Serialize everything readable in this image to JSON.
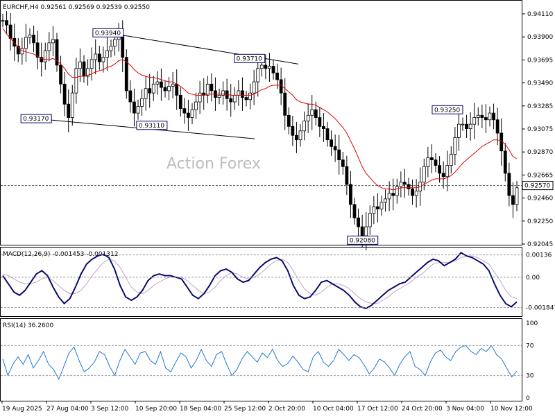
{
  "chart_data": {
    "type": "candlestick",
    "main": {
      "header": "EURCHF,H4  0.92561 0.92569 0.92539 0.92550",
      "watermark": "Action Forex",
      "ylim": [
        0.92045,
        0.9411
      ],
      "price_ticks": [
        "0.94110",
        "0.93900",
        "0.93695",
        "0.93490",
        "0.93285",
        "0.93075",
        "0.92870",
        "0.92665",
        "0.92460",
        "0.92250",
        "0.92045"
      ],
      "current_price": "0.92570",
      "current_value": 0.9257,
      "callouts": [
        {
          "label": "0.93940",
          "t": 0.205,
          "v": 0.9394
        },
        {
          "label": "0.93710",
          "t": 0.48,
          "v": 0.9371
        },
        {
          "label": "0.93170",
          "t": 0.065,
          "v": 0.9317
        },
        {
          "label": "0.93110",
          "t": 0.29,
          "v": 0.9311
        },
        {
          "label": "0.93250",
          "t": 0.865,
          "v": 0.9325
        },
        {
          "label": "0.92080",
          "t": 0.7,
          "v": 0.9208
        }
      ],
      "trendlines": [
        {
          "t1": 0.205,
          "v1": 0.9394,
          "t2": 0.575,
          "v2": 0.9366
        },
        {
          "t1": 0.065,
          "v1": 0.9317,
          "t2": 0.49,
          "v2": 0.9299
        }
      ],
      "close": [
        0.9405,
        0.9401,
        0.9389,
        0.9382,
        0.9375,
        0.938,
        0.939,
        0.9392,
        0.9385,
        0.9372,
        0.9368,
        0.9378,
        0.9385,
        0.9388,
        0.9365,
        0.9348,
        0.933,
        0.9318,
        0.934,
        0.9362,
        0.9368,
        0.9355,
        0.9362,
        0.937,
        0.9375,
        0.9368,
        0.9372,
        0.9378,
        0.9382,
        0.9388,
        0.9392,
        0.9372,
        0.9342,
        0.9332,
        0.9322,
        0.9328,
        0.9335,
        0.9344,
        0.934,
        0.9348,
        0.935,
        0.9345,
        0.9342,
        0.9346,
        0.9348,
        0.9338,
        0.9326,
        0.9322,
        0.9318,
        0.9325,
        0.9332,
        0.934,
        0.9338,
        0.9348,
        0.9342,
        0.9336,
        0.9338,
        0.9342,
        0.9335,
        0.9332,
        0.9338,
        0.9342,
        0.9336,
        0.9334,
        0.934,
        0.935,
        0.9362,
        0.9365,
        0.9362,
        0.9364,
        0.9358,
        0.9352,
        0.934,
        0.932,
        0.931,
        0.9302,
        0.9298,
        0.9306,
        0.9315,
        0.932,
        0.9325,
        0.9318,
        0.931,
        0.9308,
        0.9298,
        0.9292,
        0.9289,
        0.928,
        0.9274,
        0.9258,
        0.924,
        0.9228,
        0.922,
        0.9212,
        0.922,
        0.9232,
        0.9238,
        0.9236,
        0.9242,
        0.9245,
        0.925,
        0.9248,
        0.9256,
        0.926,
        0.9258,
        0.9254,
        0.9248,
        0.9252,
        0.926,
        0.9274,
        0.9282,
        0.928,
        0.9275,
        0.9268,
        0.9265,
        0.9275,
        0.9285,
        0.93,
        0.9312,
        0.9312,
        0.9308,
        0.9312,
        0.9318,
        0.932,
        0.9318,
        0.9316,
        0.9322,
        0.9316,
        0.9304,
        0.9288,
        0.9268,
        0.9248,
        0.924,
        0.9255
      ],
      "ma": [
        0.9398,
        0.9393,
        0.9389,
        0.9385,
        0.9381,
        0.9378,
        0.9377,
        0.9376,
        0.9375,
        0.9373,
        0.9371,
        0.937,
        0.937,
        0.9371,
        0.9369,
        0.9366,
        0.9362,
        0.9357,
        0.9354,
        0.9354,
        0.9355,
        0.9355,
        0.9356,
        0.9357,
        0.9359,
        0.936,
        0.9361,
        0.9363,
        0.9364,
        0.9366,
        0.9369,
        0.937,
        0.9368,
        0.9365,
        0.9361,
        0.9358,
        0.9356,
        0.9355,
        0.9354,
        0.9354,
        0.9353,
        0.9352,
        0.9351,
        0.935,
        0.935,
        0.9348,
        0.9346,
        0.9343,
        0.934,
        0.9339,
        0.9338,
        0.9338,
        0.9338,
        0.9339,
        0.9339,
        0.9339,
        0.9339,
        0.9339,
        0.9339,
        0.9338,
        0.9338,
        0.9338,
        0.9338,
        0.9338,
        0.9338,
        0.9339,
        0.9341,
        0.9343,
        0.9344,
        0.9346,
        0.9347,
        0.9347,
        0.9347,
        0.9344,
        0.9341,
        0.9338,
        0.9334,
        0.9332,
        0.9331,
        0.933,
        0.933,
        0.9329,
        0.9327,
        0.9325,
        0.9323,
        0.932,
        0.9317,
        0.9313,
        0.9309,
        0.9304,
        0.9297,
        0.929,
        0.9282,
        0.9274,
        0.9268,
        0.9264,
        0.926,
        0.9257,
        0.9255,
        0.9254,
        0.9254,
        0.9253,
        0.9254,
        0.9255,
        0.9255,
        0.9255,
        0.9255,
        0.9255,
        0.9256,
        0.9258,
        0.926,
        0.9262,
        0.9263,
        0.9263,
        0.9263,
        0.9264,
        0.9266,
        0.9269,
        0.9273,
        0.9277,
        0.928,
        0.9283,
        0.9286,
        0.9289,
        0.9292,
        0.9294,
        0.9296,
        0.9298,
        0.9298,
        0.9297,
        0.9294,
        0.9289,
        0.9283,
        0.9281
      ]
    },
    "macd": {
      "header": "MACD(12,26,9) -0.001453 -0.001312",
      "ylim": [
        -0.0022,
        0.0016
      ],
      "ticks": [
        {
          "label": "0.00136",
          "v": 0.00136
        },
        {
          "label": "0.00",
          "v": 0
        },
        {
          "label": "-0.001847",
          "v": -0.001847
        }
      ],
      "macd": [
        0.0001,
        -0.0004,
        -0.0009,
        -0.0011,
        -0.0008,
        -0.0003,
        0.0002,
        0.0004,
        0.0001,
        -0.0006,
        -0.0012,
        -0.0016,
        -0.0013,
        -0.0006,
        0.0002,
        0.0008,
        0.0011,
        0.0013,
        0.0014,
        0.0012,
        0.0005,
        -0.0005,
        -0.0012,
        -0.0014,
        -0.0012,
        -0.0008,
        -0.0002,
        0.0001,
        0.0002,
        0.0001,
        0.0001,
        0.0,
        -0.0001,
        -0.0006,
        -0.0011,
        -0.0013,
        -0.001,
        -0.0005,
        0.0001,
        0.0004,
        0.0005,
        0.0003,
        -0.0001,
        -0.0003,
        -0.0002,
        0.0002,
        0.0006,
        0.0009,
        0.0011,
        0.0012,
        0.001,
        0.0004,
        -0.0005,
        -0.0011,
        -0.0013,
        -0.0012,
        -0.0008,
        -0.0003,
        -0.0002,
        -0.0004,
        -0.0006,
        -0.0008,
        -0.0011,
        -0.0015,
        -0.0018,
        -0.0019,
        -0.0017,
        -0.0014,
        -0.0011,
        -0.0008,
        -0.0006,
        -0.0004,
        -0.0003,
        0.0,
        0.0003,
        0.0006,
        0.0009,
        0.0011,
        0.001,
        0.0007,
        0.0009,
        0.0011,
        0.0015,
        0.0013,
        0.0012,
        0.001,
        0.0008,
        0.0004,
        -0.0004,
        -0.0011,
        -0.0016,
        -0.0018,
        -0.0015
      ],
      "signal": [
        0.0002,
        0.0001,
        -0.0001,
        -0.0003,
        -0.0004,
        -0.0004,
        -0.0003,
        -0.0001,
        0.0,
        -0.0002,
        -0.0005,
        -0.0008,
        -0.001,
        -0.001,
        -0.0008,
        -0.0004,
        0.0001,
        0.0005,
        0.0009,
        0.0011,
        0.001,
        0.0006,
        0.0,
        -0.0006,
        -0.0009,
        -0.001,
        -0.0008,
        -0.0005,
        -0.0003,
        -0.0001,
        0.0,
        0.0,
        0.0,
        -0.0002,
        -0.0005,
        -0.0008,
        -0.001,
        -0.0009,
        -0.0006,
        -0.0002,
        0.0001,
        0.0003,
        0.0002,
        0.0,
        -0.0001,
        0.0,
        0.0002,
        0.0005,
        0.0008,
        0.001,
        0.0011,
        0.0009,
        0.0004,
        -0.0002,
        -0.0007,
        -0.001,
        -0.0011,
        -0.0009,
        -0.0006,
        -0.0004,
        -0.0004,
        -0.0005,
        -0.0007,
        -0.001,
        -0.0013,
        -0.0015,
        -0.0016,
        -0.0016,
        -0.0014,
        -0.0012,
        -0.0009,
        -0.0007,
        -0.0005,
        -0.0003,
        0.0,
        0.0002,
        0.0005,
        0.0008,
        0.0009,
        0.0009,
        0.0009,
        0.001,
        0.0012,
        0.0013,
        0.0013,
        0.0012,
        0.001,
        0.0008,
        0.0003,
        -0.0002,
        -0.0008,
        -0.0012,
        -0.0013
      ]
    },
    "rsi": {
      "header": "RSI(14) 36.2600",
      "ylim": [
        0,
        100
      ],
      "ticks": [
        {
          "label": "100",
          "v": 100
        },
        {
          "label": "70",
          "v": 70
        },
        {
          "label": "30",
          "v": 30
        },
        {
          "label": "0",
          "v": 0
        }
      ],
      "values": [
        52,
        30,
        45,
        55,
        45,
        58,
        40,
        50,
        62,
        45,
        38,
        25,
        42,
        60,
        68,
        50,
        35,
        40,
        48,
        62,
        58,
        42,
        30,
        50,
        65,
        55,
        45,
        60,
        62,
        50,
        45,
        62,
        40,
        35,
        48,
        60,
        55,
        40,
        50,
        65,
        50,
        42,
        58,
        62,
        45,
        30,
        38,
        52,
        62,
        55,
        48,
        60,
        54,
        65,
        50,
        42,
        46,
        56,
        48,
        38,
        35,
        55,
        62,
        48,
        42,
        50,
        65,
        58,
        50,
        58,
        54,
        44,
        32,
        40,
        52,
        48,
        40,
        30,
        45,
        55,
        62,
        42,
        38,
        30,
        48,
        60,
        64,
        55,
        50,
        62,
        68,
        70,
        62,
        58,
        66,
        62,
        70,
        58,
        52,
        40,
        28,
        36
      ]
    },
    "x_ticks": [
      "19 Aug 2025",
      "27 Aug 04:00",
      "3 Sep 12:00",
      "10 Sep 20:00",
      "18 Sep 04:00",
      "25 Sep 12:00",
      "2 Oct 20:00",
      "10 Oct 04:00",
      "17 Oct 12:00",
      "24 Oct 20:00",
      "3 Nov 04:00",
      "10 Nov 12:00"
    ],
    "colors": {
      "ma": "#e00000",
      "macd": "#0a0a6e",
      "signal": "#c8a0c8",
      "rsi": "#1e78d2",
      "candle": "#000000",
      "callout_text": "#00006e"
    }
  }
}
